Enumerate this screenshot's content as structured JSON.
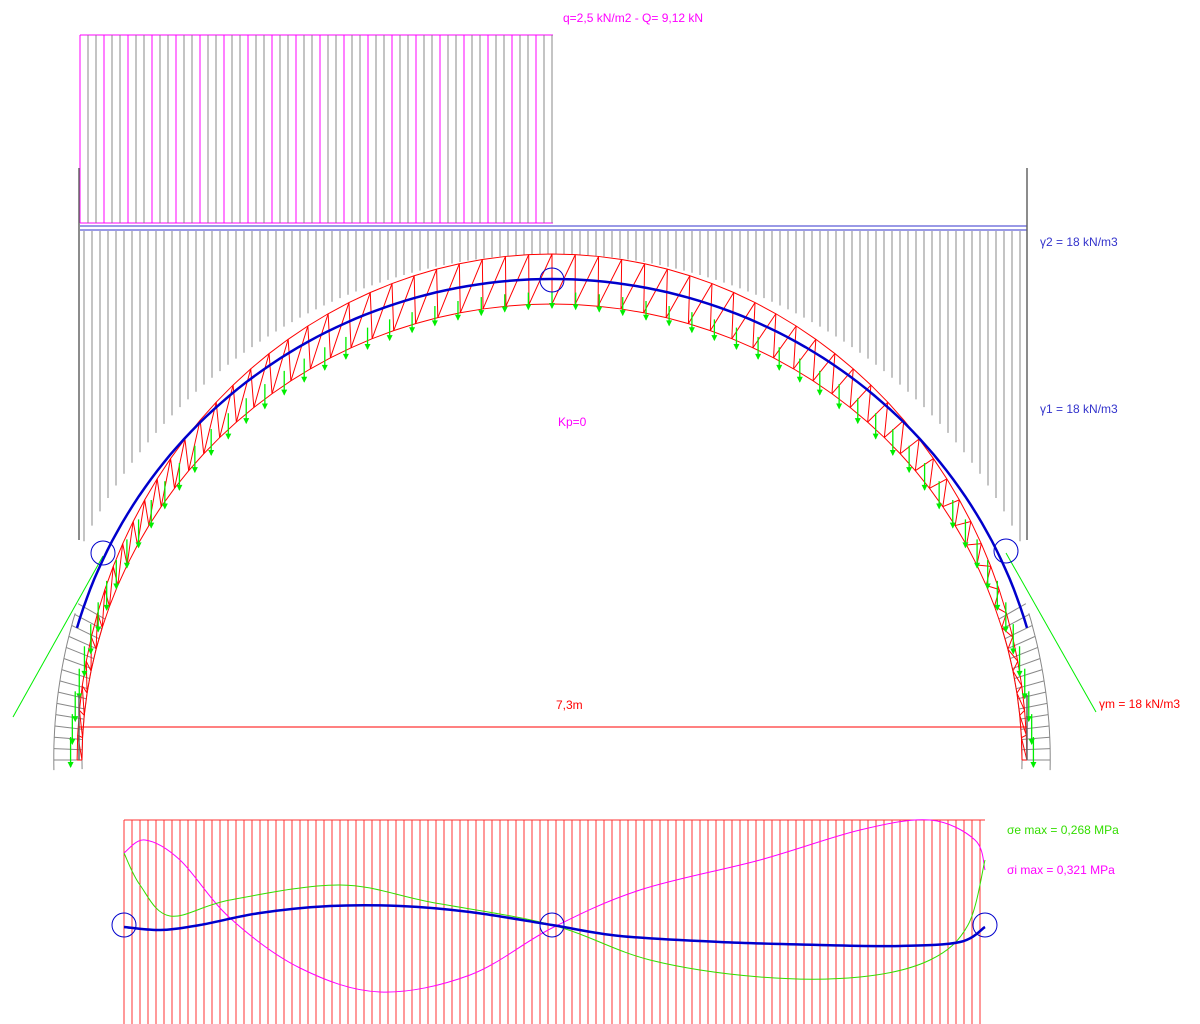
{
  "labels": {
    "load": "q=2,5 kN/m2 - Q= 9,12 kN",
    "gamma2": "γ2 = 18 kN/m3",
    "gamma1": "γ1 = 18 kN/m3",
    "kp": "Kp=0",
    "span": "7,3m",
    "gamma_m": "γm = 18 kN/m3",
    "sigma_e": "σe max =  0,268 MPa",
    "sigma_i": "σi max =  0,321 MPa"
  },
  "colors": {
    "load": "#ff00ff",
    "soil_layer": "#3333cc",
    "arch_outline": "#ff0000",
    "thrust_line": "#0000cc",
    "arch_loads": "#00ee00",
    "grey_lines": "#888888",
    "span_line": "#ff0000",
    "sigma_e": "#33dd00",
    "sigma_i": "#ff00ff"
  }
}
